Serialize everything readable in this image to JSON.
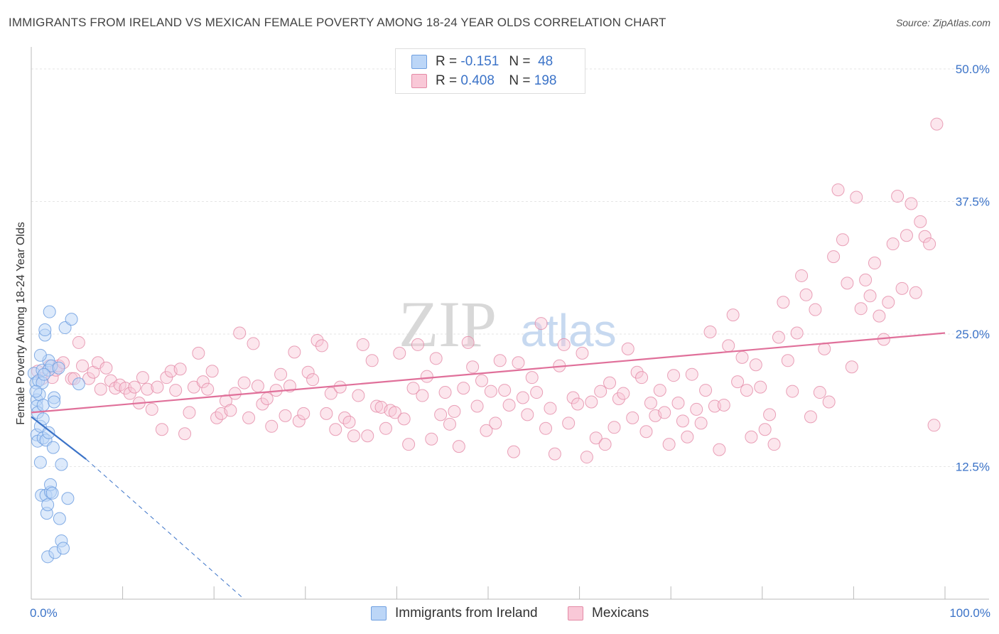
{
  "title": "IMMIGRANTS FROM IRELAND VS MEXICAN FEMALE POVERTY AMONG 18-24 YEAR OLDS CORRELATION CHART",
  "source": "Source: ZipAtlas.com",
  "watermark": {
    "zip": "ZIP",
    "atlas": "atlas"
  },
  "legend": {
    "rows": [
      {
        "r_label": "R =",
        "r_value": "-0.151",
        "n_label": "N =",
        "n_value": "48"
      },
      {
        "r_label": "R =",
        "r_value": "0.408",
        "n_label": "N =",
        "n_value": "198"
      }
    ]
  },
  "bottom_legend": {
    "series1": "Immigrants from Ireland",
    "series2": "Mexicans"
  },
  "colors": {
    "blue": "#6f9fe0",
    "blue_fill": "#bcd6f7",
    "pink": "#e48aa6",
    "pink_fill": "#f9c8d7",
    "blue_line": "#3b73c8",
    "pink_line": "#e0709a",
    "tick_text": "#3b73c8"
  },
  "chart_data": {
    "type": "scatter",
    "title": "IMMIGRANTS FROM IRELAND VS MEXICAN FEMALE POVERTY AMONG 18-24 YEAR OLDS CORRELATION CHART",
    "xlabel": "",
    "ylabel": "Female Poverty Among 18-24 Year Olds",
    "x_tick_labels": [
      "0.0%",
      "100.0%"
    ],
    "y_tick_labels": [
      "12.5%",
      "25.0%",
      "37.5%",
      "50.0%"
    ],
    "y_ticks": [
      12.5,
      25.0,
      37.5,
      50.0
    ],
    "xlim": [
      0,
      100
    ],
    "ylim": [
      0,
      52
    ],
    "grid": true,
    "series": [
      {
        "name": "Immigrants from Ireland",
        "r": -0.151,
        "n": 48,
        "trend": {
          "x0": 0.0,
          "y0": 17.2,
          "x1": 6.0,
          "y1": 13.2
        },
        "trend_dashed": {
          "x0": 6.0,
          "y0": 13.2,
          "x1": 23.3,
          "y1": 0.0
        },
        "points": [
          [
            0.3,
            21.3
          ],
          [
            0.5,
            20.4
          ],
          [
            0.6,
            18.8
          ],
          [
            0.6,
            18.2
          ],
          [
            0.7,
            17.6
          ],
          [
            0.6,
            15.5
          ],
          [
            0.7,
            14.9
          ],
          [
            0.9,
            19.3
          ],
          [
            1.0,
            16.3
          ],
          [
            1.0,
            12.9
          ],
          [
            1.1,
            9.8
          ],
          [
            1.2,
            21.6
          ],
          [
            1.3,
            18.3
          ],
          [
            1.3,
            17.0
          ],
          [
            1.3,
            15.2
          ],
          [
            1.5,
            24.9
          ],
          [
            1.5,
            25.4
          ],
          [
            1.6,
            15.0
          ],
          [
            1.6,
            9.8
          ],
          [
            1.7,
            8.1
          ],
          [
            1.8,
            8.9
          ],
          [
            1.8,
            4.0
          ],
          [
            1.9,
            15.7
          ],
          [
            1.9,
            22.5
          ],
          [
            1.9,
            21.6
          ],
          [
            2.0,
            27.1
          ],
          [
            2.1,
            10.1
          ],
          [
            2.1,
            10.8
          ],
          [
            2.3,
            10.0
          ],
          [
            2.4,
            14.3
          ],
          [
            2.5,
            19.0
          ],
          [
            2.5,
            18.6
          ],
          [
            2.6,
            4.4
          ],
          [
            3.1,
            7.6
          ],
          [
            3.3,
            12.7
          ],
          [
            3.3,
            5.5
          ],
          [
            3.5,
            4.8
          ],
          [
            3.7,
            25.6
          ],
          [
            4.0,
            9.5
          ],
          [
            4.4,
            26.4
          ],
          [
            5.2,
            20.3
          ],
          [
            1.0,
            23.0
          ],
          [
            0.8,
            20.6
          ],
          [
            1.2,
            20.4
          ],
          [
            2.2,
            22.0
          ],
          [
            0.5,
            19.6
          ],
          [
            3.0,
            21.8
          ],
          [
            1.4,
            21.2
          ]
        ]
      },
      {
        "name": "Mexicans",
        "r": 0.408,
        "n": 198,
        "trend": {
          "x0": 0.0,
          "y0": 17.6,
          "x1": 100.0,
          "y1": 25.1
        },
        "points": [
          [
            0.7,
            21.5
          ],
          [
            1.2,
            20.8
          ],
          [
            2.0,
            22.0
          ],
          [
            2.3,
            20.9
          ],
          [
            2.7,
            21.6
          ],
          [
            3.0,
            22.0
          ],
          [
            3.5,
            22.3
          ],
          [
            4.4,
            20.8
          ],
          [
            4.7,
            20.8
          ],
          [
            5.2,
            24.2
          ],
          [
            5.6,
            22.0
          ],
          [
            6.3,
            20.8
          ],
          [
            6.8,
            21.4
          ],
          [
            7.3,
            22.3
          ],
          [
            7.6,
            19.8
          ],
          [
            8.2,
            21.8
          ],
          [
            8.7,
            20.6
          ],
          [
            9.2,
            19.9
          ],
          [
            9.7,
            20.2
          ],
          [
            10.3,
            19.9
          ],
          [
            10.8,
            19.4
          ],
          [
            11.3,
            20.0
          ],
          [
            11.8,
            18.5
          ],
          [
            12.2,
            20.9
          ],
          [
            12.7,
            19.8
          ],
          [
            13.2,
            17.9
          ],
          [
            13.8,
            20.0
          ],
          [
            14.3,
            16.0
          ],
          [
            14.8,
            20.9
          ],
          [
            15.3,
            21.5
          ],
          [
            15.8,
            19.7
          ],
          [
            16.3,
            21.7
          ],
          [
            16.8,
            15.6
          ],
          [
            17.3,
            17.6
          ],
          [
            17.8,
            20.0
          ],
          [
            18.3,
            23.2
          ],
          [
            18.8,
            20.5
          ],
          [
            19.3,
            19.8
          ],
          [
            19.8,
            21.5
          ],
          [
            20.3,
            17.1
          ],
          [
            20.8,
            17.5
          ],
          [
            21.3,
            18.7
          ],
          [
            21.8,
            17.8
          ],
          [
            22.3,
            19.4
          ],
          [
            22.8,
            25.1
          ],
          [
            23.3,
            20.4
          ],
          [
            23.8,
            17.1
          ],
          [
            24.3,
            24.1
          ],
          [
            24.8,
            20.1
          ],
          [
            25.3,
            18.4
          ],
          [
            25.8,
            18.9
          ],
          [
            26.3,
            16.3
          ],
          [
            26.8,
            19.7
          ],
          [
            27.3,
            21.2
          ],
          [
            27.8,
            17.3
          ],
          [
            28.3,
            20.1
          ],
          [
            28.8,
            23.3
          ],
          [
            29.3,
            16.8
          ],
          [
            29.8,
            17.5
          ],
          [
            30.3,
            21.4
          ],
          [
            30.8,
            20.7
          ],
          [
            31.3,
            24.4
          ],
          [
            31.8,
            23.9
          ],
          [
            32.3,
            17.5
          ],
          [
            32.8,
            19.4
          ],
          [
            33.3,
            16.0
          ],
          [
            33.8,
            20.0
          ],
          [
            34.3,
            17.1
          ],
          [
            34.8,
            16.7
          ],
          [
            35.3,
            15.4
          ],
          [
            35.8,
            19.2
          ],
          [
            36.3,
            24.0
          ],
          [
            36.8,
            15.4
          ],
          [
            37.3,
            22.5
          ],
          [
            37.8,
            18.2
          ],
          [
            38.3,
            18.1
          ],
          [
            38.8,
            16.1
          ],
          [
            39.3,
            17.8
          ],
          [
            39.8,
            17.6
          ],
          [
            40.3,
            23.2
          ],
          [
            40.8,
            17.0
          ],
          [
            41.3,
            14.6
          ],
          [
            41.8,
            19.9
          ],
          [
            42.3,
            24.0
          ],
          [
            42.8,
            19.2
          ],
          [
            43.3,
            21.0
          ],
          [
            43.8,
            15.1
          ],
          [
            44.3,
            22.7
          ],
          [
            44.8,
            17.4
          ],
          [
            45.3,
            19.5
          ],
          [
            45.8,
            16.5
          ],
          [
            46.3,
            17.7
          ],
          [
            46.8,
            14.4
          ],
          [
            47.3,
            19.9
          ],
          [
            47.8,
            24.2
          ],
          [
            48.3,
            21.9
          ],
          [
            48.8,
            18.2
          ],
          [
            49.3,
            20.6
          ],
          [
            49.8,
            15.9
          ],
          [
            50.3,
            19.6
          ],
          [
            50.8,
            16.6
          ],
          [
            51.3,
            22.5
          ],
          [
            51.8,
            19.7
          ],
          [
            52.3,
            18.3
          ],
          [
            52.8,
            13.9
          ],
          [
            53.3,
            22.3
          ],
          [
            53.8,
            19.0
          ],
          [
            54.3,
            17.4
          ],
          [
            54.8,
            20.9
          ],
          [
            55.3,
            19.5
          ],
          [
            55.8,
            26.0
          ],
          [
            56.3,
            16.1
          ],
          [
            56.8,
            18.0
          ],
          [
            57.3,
            13.7
          ],
          [
            57.8,
            22.0
          ],
          [
            58.3,
            24.0
          ],
          [
            58.8,
            16.6
          ],
          [
            59.3,
            19.0
          ],
          [
            59.8,
            18.4
          ],
          [
            60.3,
            23.2
          ],
          [
            60.8,
            13.4
          ],
          [
            61.3,
            18.6
          ],
          [
            61.8,
            15.2
          ],
          [
            62.3,
            19.6
          ],
          [
            62.8,
            14.6
          ],
          [
            63.3,
            20.4
          ],
          [
            63.8,
            16.2
          ],
          [
            64.3,
            18.9
          ],
          [
            64.8,
            19.4
          ],
          [
            65.3,
            23.6
          ],
          [
            65.8,
            17.1
          ],
          [
            66.3,
            21.4
          ],
          [
            66.8,
            20.9
          ],
          [
            67.3,
            15.8
          ],
          [
            67.8,
            18.5
          ],
          [
            68.3,
            17.3
          ],
          [
            68.8,
            19.7
          ],
          [
            69.3,
            17.6
          ],
          [
            69.8,
            14.6
          ],
          [
            70.3,
            21.1
          ],
          [
            70.8,
            18.5
          ],
          [
            71.3,
            16.8
          ],
          [
            71.8,
            15.3
          ],
          [
            72.3,
            21.2
          ],
          [
            72.8,
            17.9
          ],
          [
            73.3,
            16.6
          ],
          [
            73.8,
            19.7
          ],
          [
            74.3,
            25.2
          ],
          [
            74.8,
            18.2
          ],
          [
            75.3,
            14.1
          ],
          [
            75.8,
            18.3
          ],
          [
            76.3,
            23.9
          ],
          [
            76.8,
            26.8
          ],
          [
            77.3,
            20.5
          ],
          [
            77.8,
            22.8
          ],
          [
            78.3,
            19.7
          ],
          [
            78.8,
            15.3
          ],
          [
            79.3,
            22.1
          ],
          [
            79.8,
            20.0
          ],
          [
            80.3,
            16.0
          ],
          [
            80.8,
            17.4
          ],
          [
            81.3,
            14.6
          ],
          [
            81.8,
            24.7
          ],
          [
            82.3,
            28.0
          ],
          [
            82.8,
            22.5
          ],
          [
            83.3,
            19.6
          ],
          [
            83.8,
            25.1
          ],
          [
            84.3,
            30.5
          ],
          [
            84.8,
            28.7
          ],
          [
            85.3,
            17.2
          ],
          [
            85.8,
            27.3
          ],
          [
            86.3,
            19.5
          ],
          [
            86.8,
            23.6
          ],
          [
            87.3,
            18.6
          ],
          [
            87.8,
            32.3
          ],
          [
            88.3,
            38.6
          ],
          [
            88.8,
            33.9
          ],
          [
            89.3,
            29.8
          ],
          [
            89.8,
            21.9
          ],
          [
            90.3,
            37.9
          ],
          [
            90.8,
            27.4
          ],
          [
            91.3,
            30.1
          ],
          [
            91.8,
            28.6
          ],
          [
            92.3,
            31.7
          ],
          [
            92.8,
            26.7
          ],
          [
            93.3,
            24.5
          ],
          [
            93.8,
            28.0
          ],
          [
            94.3,
            33.5
          ],
          [
            94.8,
            38.0
          ],
          [
            95.3,
            29.3
          ],
          [
            95.8,
            34.3
          ],
          [
            96.3,
            37.3
          ],
          [
            96.8,
            28.9
          ],
          [
            97.3,
            35.6
          ],
          [
            97.8,
            34.2
          ],
          [
            98.3,
            33.5
          ],
          [
            98.8,
            16.4
          ],
          [
            99.1,
            44.8
          ]
        ]
      }
    ]
  }
}
